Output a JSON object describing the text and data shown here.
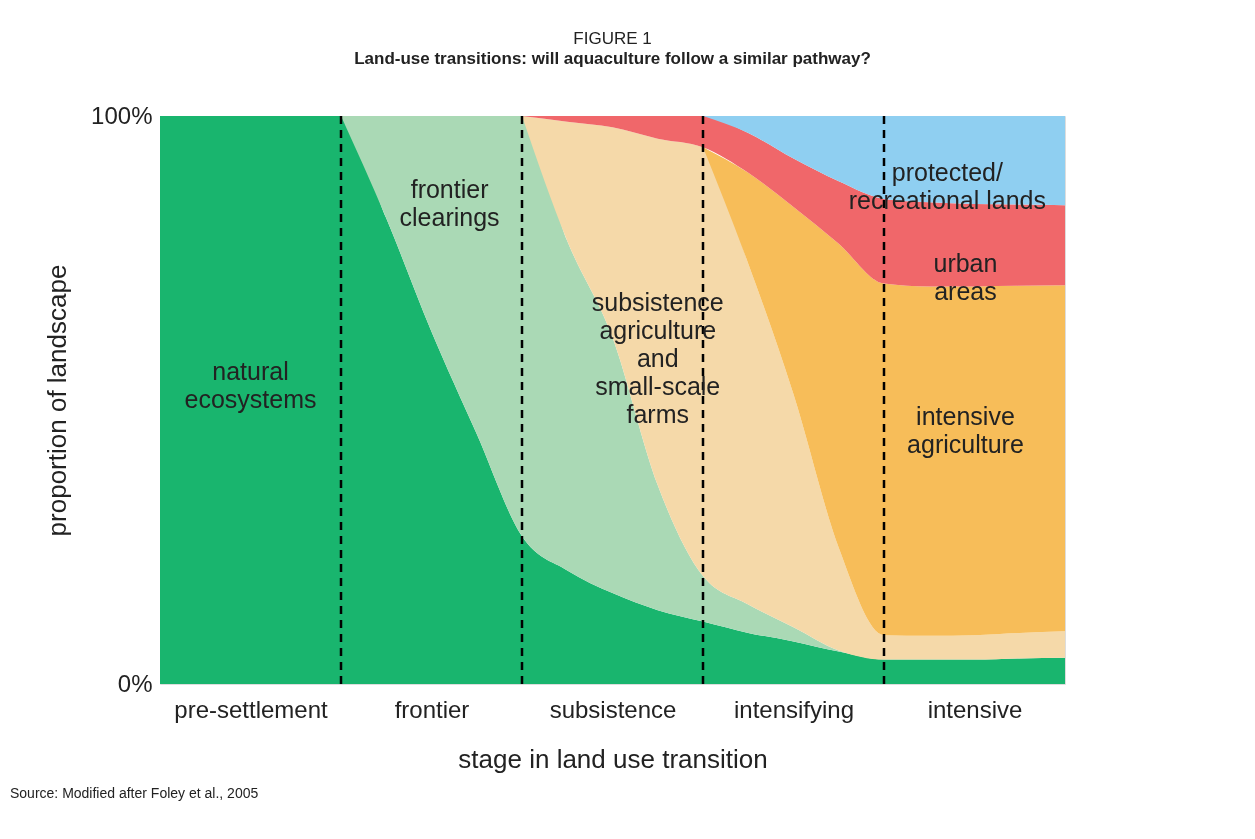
{
  "chart_data": {
    "type": "area",
    "stacked": true,
    "title": "FIGURE 1",
    "subtitle": "Land-use transitions: will aquaculture follow a similar pathway?",
    "xlabel": "stage in land use transition",
    "ylabel": "proportion of landscape",
    "categories": [
      null,
      null,
      "pre-settlement",
      null,
      null,
      null,
      "frontier",
      null,
      null,
      null,
      "subsistence",
      null,
      null,
      null,
      "intensifying",
      null,
      null,
      null,
      "intensive",
      null,
      null
    ],
    "series": [
      {
        "color": "#19b56e",
        "values": [
          100,
          100,
          100,
          100,
          100,
          82,
          62,
          44,
          26,
          20,
          16,
          13,
          11,
          9,
          7.5,
          5.7,
          4.3,
          4.3,
          4.3,
          4.5,
          4.6
        ]
      },
      {
        "color": "#aad9b5",
        "values": [
          null,
          null,
          null,
          null,
          0,
          18,
          38,
          56,
          74,
          58,
          45,
          22,
          8,
          5,
          2.5,
          0.2,
          0,
          null,
          null,
          null,
          null
        ]
      },
      {
        "color": "#f5d9a9",
        "values": [
          null,
          null,
          null,
          null,
          null,
          null,
          null,
          null,
          0,
          21,
          37,
          61,
          75.5,
          60,
          41,
          18.1,
          4.3,
          4.2,
          4.3,
          4.5,
          4.7
        ]
      },
      {
        "color": "#f7bd59",
        "values": [
          null,
          null,
          null,
          null,
          null,
          null,
          null,
          null,
          null,
          null,
          null,
          null,
          0,
          16,
          33,
          53.5,
          61.9,
          61.5,
          61.4,
          61.1,
          60.9
        ]
      },
      {
        "color": "#f0676a",
        "values": [
          null,
          null,
          null,
          null,
          null,
          null,
          null,
          null,
          0,
          1,
          2,
          4,
          5.5,
          7,
          8.5,
          11,
          14.9,
          14.8,
          14.5,
          14.3,
          14.1
        ]
      },
      {
        "color": "#8fcff1",
        "values": [
          null,
          null,
          null,
          null,
          null,
          null,
          null,
          null,
          null,
          null,
          null,
          null,
          0,
          3,
          7.5,
          11.5,
          14.6,
          15.2,
          15.5,
          15.6,
          15.7
        ]
      }
    ],
    "ylim": [
      0,
      100
    ],
    "yticks": [
      {
        "value": 0,
        "label": "0%"
      },
      {
        "value": 100,
        "label": "100%"
      }
    ],
    "grid": "x",
    "annotations": [
      "natural\necosystems",
      "frontier\nclearings",
      "subsistence\nagriculture\nand\nsmall-scale\nfarms",
      "protected/\nrecreational lands",
      "urban\nareas",
      "intensive\nagriculture",
      "Source: Modified after Foley et al., 2005"
    ]
  }
}
